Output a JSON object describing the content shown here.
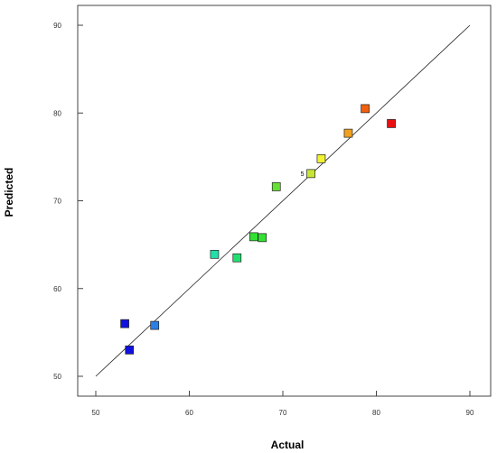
{
  "chart_data": {
    "type": "scatter",
    "xlabel": "Actual",
    "ylabel": "Predicted",
    "xlim": [
      50,
      90
    ],
    "ylim": [
      50,
      90
    ],
    "x_ticks": [
      50,
      60,
      70,
      80,
      90
    ],
    "y_ticks": [
      50,
      60,
      70,
      80,
      90
    ],
    "reference_line": {
      "from": [
        50,
        50
      ],
      "to": [
        90,
        90
      ]
    },
    "grid": false,
    "points": [
      {
        "x": 53.1,
        "y": 56.0,
        "color": "#1010e0"
      },
      {
        "x": 53.6,
        "y": 53.0,
        "color": "#1010e0"
      },
      {
        "x": 56.3,
        "y": 55.8,
        "color": "#2a7fe8"
      },
      {
        "x": 62.7,
        "y": 63.9,
        "color": "#22e0a8"
      },
      {
        "x": 65.1,
        "y": 63.5,
        "color": "#22e070"
      },
      {
        "x": 66.9,
        "y": 65.9,
        "color": "#33e033"
      },
      {
        "x": 67.8,
        "y": 65.8,
        "color": "#33e033"
      },
      {
        "x": 69.3,
        "y": 71.6,
        "color": "#66e033"
      },
      {
        "x": 73.0,
        "y": 73.1,
        "color": "#c6e633",
        "label": "5"
      },
      {
        "x": 74.1,
        "y": 74.8,
        "color": "#f2f233"
      },
      {
        "x": 77.0,
        "y": 77.7,
        "color": "#f2a020"
      },
      {
        "x": 78.8,
        "y": 80.5,
        "color": "#f06010"
      },
      {
        "x": 81.6,
        "y": 78.8,
        "color": "#e81010"
      }
    ]
  }
}
